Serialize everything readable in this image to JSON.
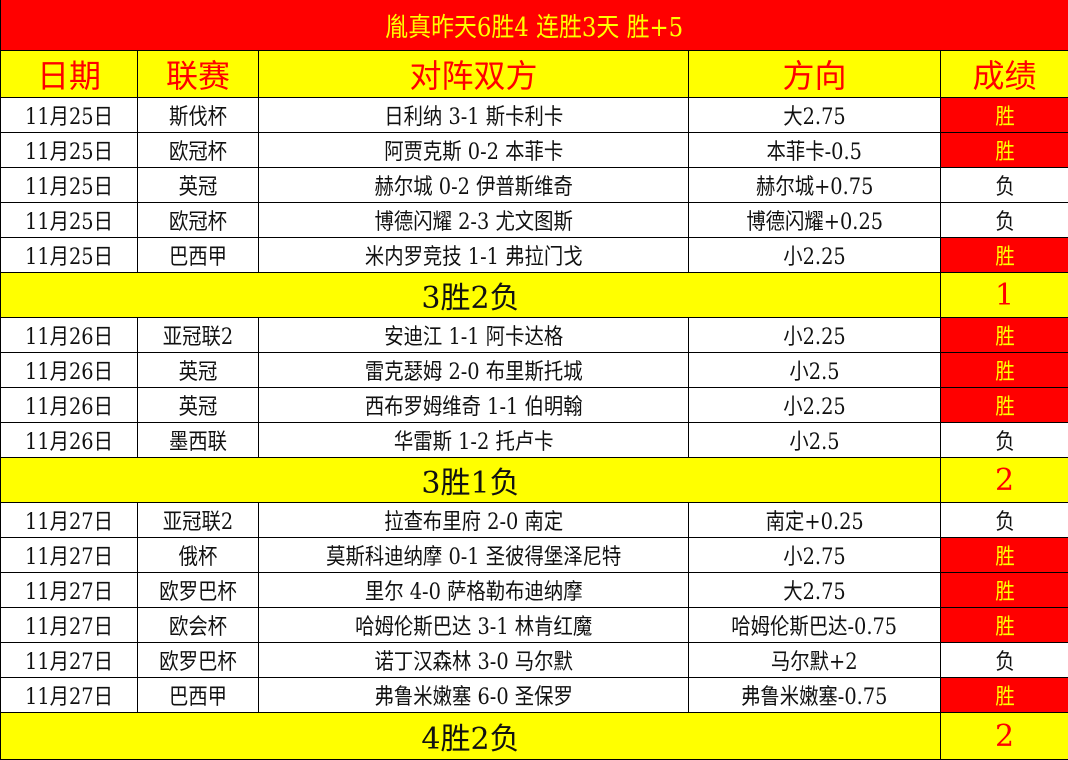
{
  "title": "胤真昨天6胜4 连胜3天 胜+5",
  "headers": [
    "日期",
    "联赛",
    "对阵双方",
    "方向",
    "成绩"
  ],
  "groups": [
    {
      "rows": [
        {
          "date": "11月25日",
          "league": "斯伐杯",
          "match": "日利纳 3-1 斯卡利卡",
          "pick": "大2.75",
          "result": "胜"
        },
        {
          "date": "11月25日",
          "league": "欧冠杯",
          "match": "阿贾克斯 0-2 本菲卡",
          "pick": "本菲卡-0.5",
          "result": "胜"
        },
        {
          "date": "11月25日",
          "league": "英冠",
          "match": "赫尔城 0-2 伊普斯维奇",
          "pick": "赫尔城+0.75",
          "result": "负"
        },
        {
          "date": "11月25日",
          "league": "欧冠杯",
          "match": "博德闪耀 2-3 尤文图斯",
          "pick": "博德闪耀+0.25",
          "result": "负"
        },
        {
          "date": "11月25日",
          "league": "巴西甲",
          "match": "米内罗竞技 1-1 弗拉门戈",
          "pick": "小2.25",
          "result": "胜"
        }
      ],
      "summary": "3胜2负",
      "summary_value": "1"
    },
    {
      "rows": [
        {
          "date": "11月26日",
          "league": "亚冠联2",
          "match": "安迪江 1-1 阿卡达格",
          "pick": "小2.25",
          "result": "胜"
        },
        {
          "date": "11月26日",
          "league": "英冠",
          "match": "雷克瑟姆 2-0 布里斯托城",
          "pick": "小2.5",
          "result": "胜"
        },
        {
          "date": "11月26日",
          "league": "英冠",
          "match": "西布罗姆维奇 1-1 伯明翰",
          "pick": "小2.25",
          "result": "胜"
        },
        {
          "date": "11月26日",
          "league": "墨西联",
          "match": "华雷斯 1-2 托卢卡",
          "pick": "小2.5",
          "result": "负"
        }
      ],
      "summary": "3胜1负",
      "summary_value": "2"
    },
    {
      "rows": [
        {
          "date": "11月27日",
          "league": "亚冠联2",
          "match": "拉查布里府 2-0 南定",
          "pick": "南定+0.25",
          "result": "负"
        },
        {
          "date": "11月27日",
          "league": "俄杯",
          "match": "莫斯科迪纳摩 0-1 圣彼得堡泽尼特",
          "pick": "小2.75",
          "result": "胜"
        },
        {
          "date": "11月27日",
          "league": "欧罗巴杯",
          "match": "里尔 4-0 萨格勒布迪纳摩",
          "pick": "大2.75",
          "result": "胜"
        },
        {
          "date": "11月27日",
          "league": "欧会杯",
          "match": "哈姆伦斯巴达 3-1 林肯红魔",
          "pick": "哈姆伦斯巴达-0.75",
          "result": "胜"
        },
        {
          "date": "11月27日",
          "league": "欧罗巴杯",
          "match": "诺丁汉森林 3-0 马尔默",
          "pick": "马尔默+2",
          "result": "负"
        },
        {
          "date": "11月27日",
          "league": "巴西甲",
          "match": "弗鲁米嫩塞 6-0 圣保罗",
          "pick": "弗鲁米嫩塞-0.75",
          "result": "胜"
        }
      ],
      "summary": "4胜2负",
      "summary_value": "2"
    }
  ],
  "colors": {
    "win_bg": "#ff0000",
    "win_text": "#ffff00",
    "header_bg": "#ffff00",
    "title_bg": "#ff0000"
  }
}
